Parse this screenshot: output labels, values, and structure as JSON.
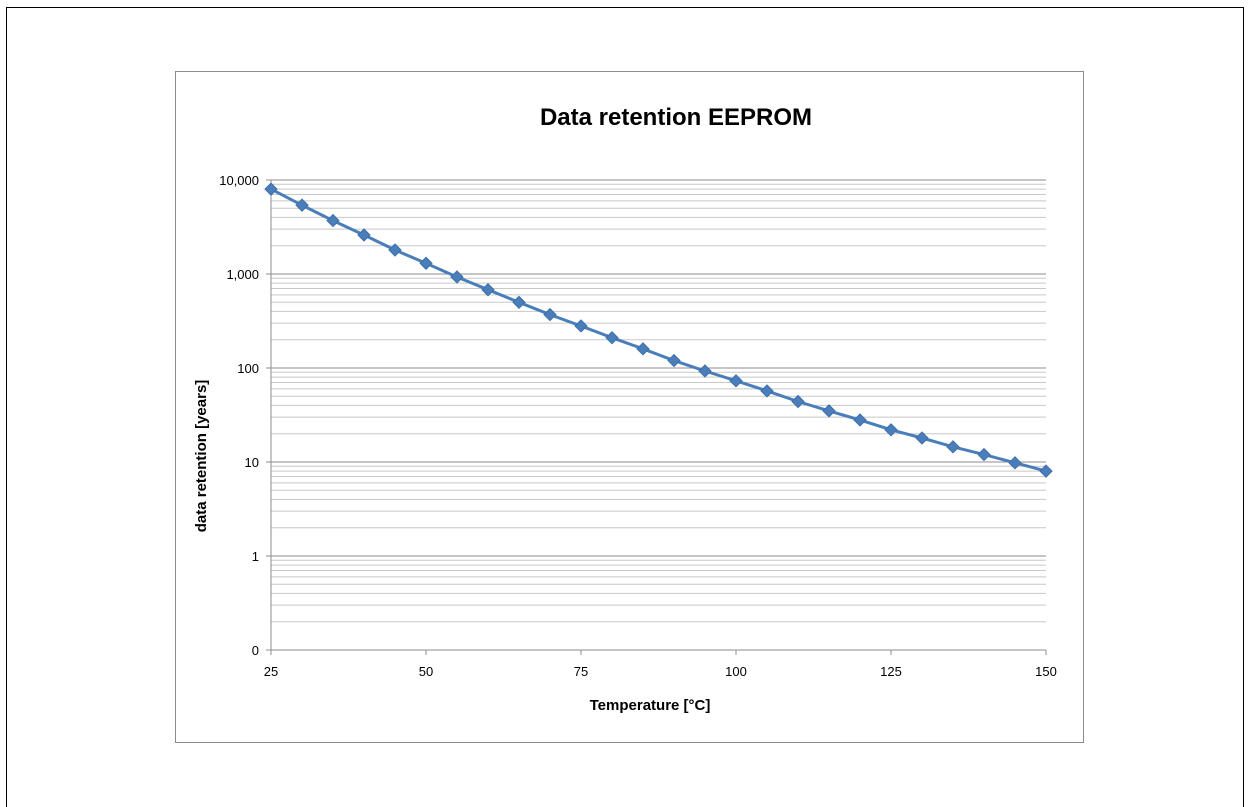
{
  "chart_data": {
    "type": "line",
    "title": "Data retention EEPROM",
    "xlabel": "Temperature [°C]",
    "ylabel": "data retention [years]",
    "xlim": [
      25,
      150
    ],
    "ylim": [
      0.1,
      10000
    ],
    "yscale": "log",
    "x_ticks": [
      25,
      50,
      75,
      100,
      125,
      150
    ],
    "x_tick_labels": [
      "25",
      "50",
      "75",
      "100",
      "125",
      "150"
    ],
    "y_ticks": [
      0.1,
      1,
      10,
      100,
      1000,
      10000
    ],
    "y_tick_labels": [
      "0",
      "1",
      "10",
      "100",
      "1,000",
      "10,000"
    ],
    "grid": true,
    "legend": "none",
    "series": [
      {
        "color": "#4a7ebb",
        "marker": "diamond",
        "x": [
          25,
          30,
          35,
          40,
          45,
          50,
          55,
          60,
          65,
          70,
          75,
          80,
          85,
          90,
          95,
          100,
          105,
          110,
          115,
          120,
          125,
          130,
          135,
          140,
          145,
          150
        ],
        "y": [
          8000,
          5400,
          3700,
          2600,
          1800,
          1300,
          930,
          680,
          500,
          370,
          280,
          210,
          160,
          120,
          93,
          73,
          57,
          44,
          35,
          28,
          22,
          18,
          14.5,
          12,
          9.8,
          8
        ]
      }
    ]
  }
}
